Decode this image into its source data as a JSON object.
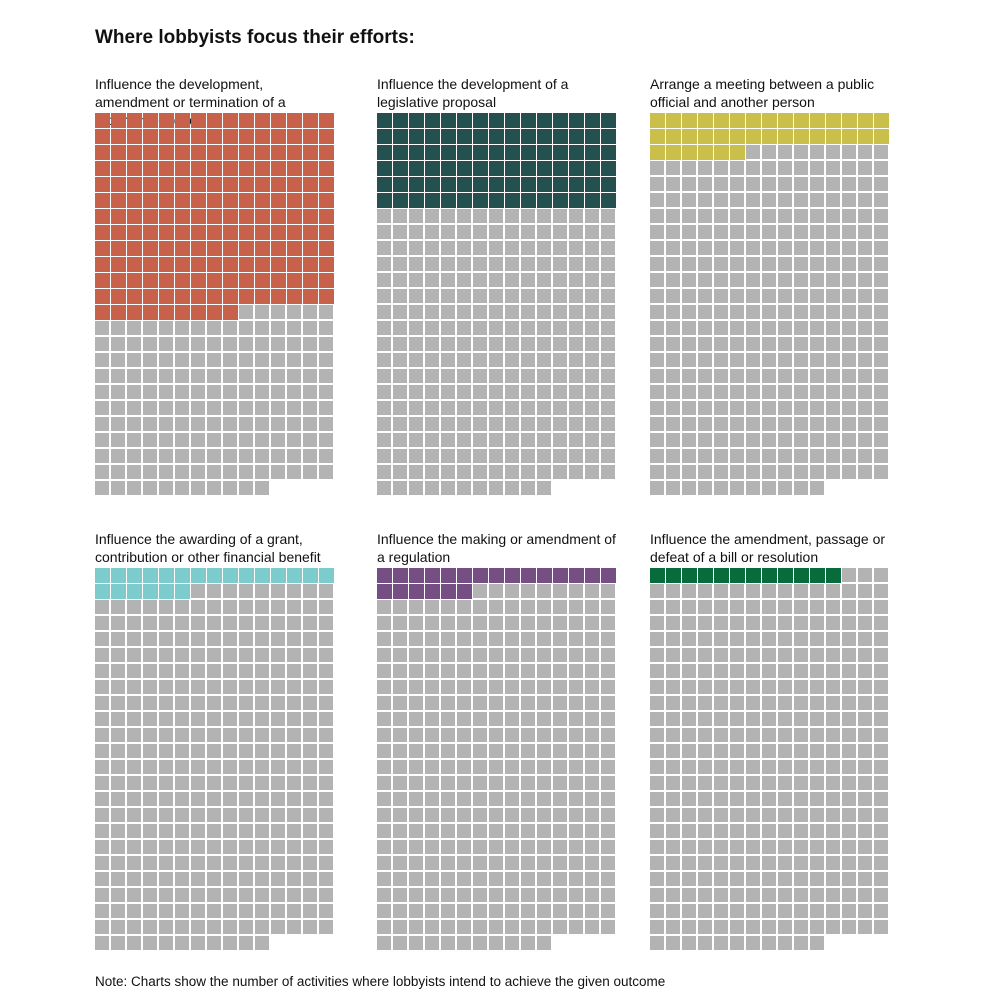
{
  "title": "Where lobbyists focus their efforts:",
  "note": "Note: Charts show the number of activities where lobbyists intend to achieve the given outcome",
  "chart_data": {
    "type": "waffle",
    "title": "Where lobbyists focus their efforts:",
    "columns": 15,
    "total_per_chart": 356,
    "empty_color": "#b3b3b3",
    "series": [
      {
        "name": "Influence the development, amendment or termination of a program or policy",
        "value": 189,
        "color": "#c8614a"
      },
      {
        "name": "Influence the development of a legislative proposal",
        "value": 90,
        "color": "#24504f"
      },
      {
        "name": "Arrange a meeting between a public official and another person",
        "value": 36,
        "color": "#c9bf4a"
      },
      {
        "name": "Influence the awarding of a grant, contribution or other financial benefit",
        "value": 21,
        "color": "#7ecbce"
      },
      {
        "name": "Influence the making or amendment of a regulation",
        "value": 21,
        "color": "#754f84"
      },
      {
        "name": "Influence the amendment, passage or defeat of a bill or resolution",
        "value": 12,
        "color": "#086b3c"
      }
    ]
  }
}
